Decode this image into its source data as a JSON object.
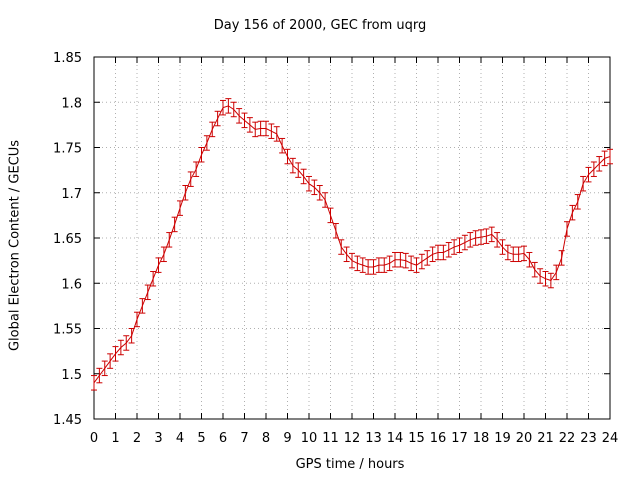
{
  "chart_data": {
    "type": "line",
    "title": "Day 156 of 2000, GEC from uqrg",
    "xlabel": "GPS time / hours",
    "ylabel": "Global Electron Content / GECUs",
    "xlim": [
      0,
      24
    ],
    "ylim": [
      1.45,
      1.85
    ],
    "xticks": [
      0,
      1,
      2,
      3,
      4,
      5,
      6,
      7,
      8,
      9,
      10,
      11,
      12,
      13,
      14,
      15,
      16,
      17,
      18,
      19,
      20,
      21,
      22,
      23,
      24
    ],
    "yticks": [
      1.45,
      1.5,
      1.55,
      1.6,
      1.65,
      1.7,
      1.75,
      1.8,
      1.85
    ],
    "ytick_labels": [
      "1.45",
      "1.5",
      "1.55",
      "1.6",
      "1.65",
      "1.7",
      "1.75",
      "1.8",
      "1.85"
    ],
    "grid": true,
    "legend": "none",
    "error": 0.008,
    "colors": {
      "series": "#cc0000",
      "grid": "#b0b0b0",
      "axis": "#000000"
    },
    "series": [
      {
        "x": [
          0,
          0.25,
          0.5,
          0.75,
          1,
          1.25,
          1.5,
          1.75,
          2,
          2.25,
          2.5,
          2.75,
          3,
          3.25,
          3.5,
          3.75,
          4,
          4.25,
          4.5,
          4.75,
          5,
          5.25,
          5.5,
          5.75,
          6,
          6.25,
          6.5,
          6.75,
          7,
          7.25,
          7.5,
          7.75,
          8,
          8.25,
          8.5,
          8.75,
          9,
          9.25,
          9.5,
          9.75,
          10,
          10.25,
          10.5,
          10.75,
          11,
          11.25,
          11.5,
          11.75,
          12,
          12.25,
          12.5,
          12.75,
          13,
          13.25,
          13.5,
          13.75,
          14,
          14.25,
          14.5,
          14.75,
          15,
          15.25,
          15.5,
          15.75,
          16,
          16.25,
          16.5,
          16.75,
          17,
          17.25,
          17.5,
          17.75,
          18,
          18.25,
          18.5,
          18.75,
          19,
          19.25,
          19.5,
          19.75,
          20,
          20.25,
          20.5,
          20.75,
          21,
          21.25,
          21.5,
          21.75,
          22,
          22.25,
          22.5,
          22.75,
          23,
          23.25,
          23.5,
          23.75,
          24
        ],
        "y": [
          1.49,
          1.498,
          1.506,
          1.514,
          1.522,
          1.529,
          1.534,
          1.542,
          1.56,
          1.575,
          1.59,
          1.605,
          1.62,
          1.632,
          1.648,
          1.665,
          1.683,
          1.7,
          1.715,
          1.726,
          1.742,
          1.755,
          1.77,
          1.782,
          1.794,
          1.796,
          1.792,
          1.785,
          1.78,
          1.775,
          1.77,
          1.771,
          1.771,
          1.768,
          1.765,
          1.752,
          1.74,
          1.73,
          1.725,
          1.718,
          1.71,
          1.706,
          1.7,
          1.692,
          1.675,
          1.658,
          1.64,
          1.632,
          1.625,
          1.622,
          1.62,
          1.618,
          1.618,
          1.62,
          1.62,
          1.622,
          1.626,
          1.626,
          1.625,
          1.622,
          1.62,
          1.624,
          1.628,
          1.632,
          1.634,
          1.634,
          1.637,
          1.64,
          1.642,
          1.645,
          1.648,
          1.65,
          1.651,
          1.652,
          1.654,
          1.648,
          1.64,
          1.634,
          1.632,
          1.632,
          1.633,
          1.626,
          1.615,
          1.608,
          1.605,
          1.603,
          1.612,
          1.628,
          1.66,
          1.678,
          1.69,
          1.71,
          1.72,
          1.726,
          1.732,
          1.738,
          1.74
        ]
      }
    ]
  }
}
